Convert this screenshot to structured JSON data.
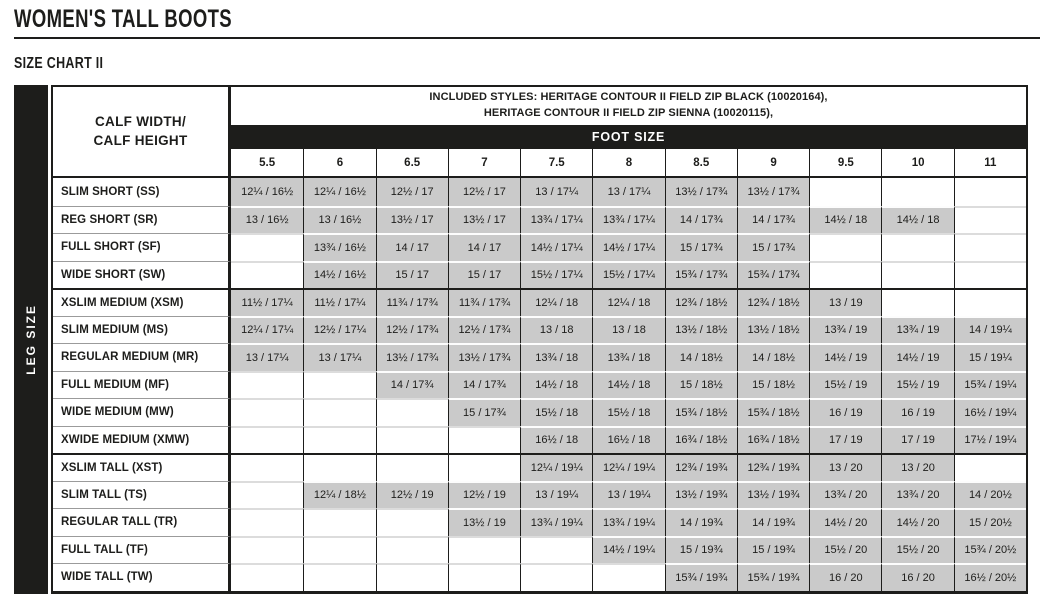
{
  "page": {
    "title": "WOMEN'S TALL BOOTS",
    "subtitle": "SIZE CHART II"
  },
  "colors": {
    "black": "#1d1d1b",
    "grey_cell": "#cacaca",
    "white": "#ffffff"
  },
  "table": {
    "leg_size_label": "LEG SIZE",
    "corner_label_line1": "CALF WIDTH/",
    "corner_label_line2": "CALF HEIGHT",
    "included_styles_line1": "INCLUDED STYLES: HERITAGE CONTOUR II FIELD ZIP BLACK (10020164),",
    "included_styles_line2": "HERITAGE CONTOUR II FIELD ZIP SIENNA (10020115),",
    "foot_size_label": "FOOT SIZE",
    "foot_sizes": [
      "5.5",
      "6",
      "6.5",
      "7",
      "7.5",
      "8",
      "8.5",
      "9",
      "9.5",
      "10",
      "11"
    ],
    "rows": [
      {
        "label": "SLIM SHORT (SS)",
        "group": "short",
        "values": [
          "12¼ / 16½",
          "12¼ / 16½",
          "12½ / 17",
          "12½ / 17",
          "13 / 17¼",
          "13 / 17¼",
          "13½ / 17¾",
          "13½ / 17¾",
          "",
          "",
          ""
        ]
      },
      {
        "label": "REG SHORT (SR)",
        "group": "short",
        "values": [
          "13 / 16½",
          "13 / 16½",
          "13½ / 17",
          "13½ / 17",
          "13¾ / 17¼",
          "13¾ / 17¼",
          "14 / 17¾",
          "14 / 17¾",
          "14½ / 18",
          "14½ / 18",
          ""
        ]
      },
      {
        "label": "FULL SHORT (SF)",
        "group": "short",
        "values": [
          "",
          "13¾ / 16½",
          "14 / 17",
          "14 / 17",
          "14½ / 17¼",
          "14½ / 17¼",
          "15 / 17¾",
          "15 / 17¾",
          "",
          "",
          ""
        ]
      },
      {
        "label": "WIDE SHORT (SW)",
        "group": "short",
        "values": [
          "",
          "14½ / 16½",
          "15 / 17",
          "15 / 17",
          "15½ / 17¼",
          "15½ / 17¼",
          "15¾ / 17¾",
          "15¾ / 17¾",
          "",
          "",
          ""
        ]
      },
      {
        "label": "XSLIM MEDIUM (XSM)",
        "group": "medium",
        "values": [
          "11½ / 17¼",
          "11½ / 17¼",
          "11¾ / 17¾",
          "11¾ / 17¾",
          "12¼ / 18",
          "12¼ / 18",
          "12¾ / 18½",
          "12¾ / 18½",
          "13 / 19",
          "",
          ""
        ]
      },
      {
        "label": "SLIM MEDIUM (MS)",
        "group": "medium",
        "values": [
          "12¼ / 17¼",
          "12½ / 17¼",
          "12½ / 17¾",
          "12½ / 17¾",
          "13 / 18",
          "13 / 18",
          "13½ / 18½",
          "13½ / 18½",
          "13¾ / 19",
          "13¾ / 19",
          "14 / 19¼"
        ]
      },
      {
        "label": "REGULAR MEDIUM (MR)",
        "group": "medium",
        "values": [
          "13 / 17¼",
          "13 / 17¼",
          "13½ / 17¾",
          "13½ / 17¾",
          "13¾ / 18",
          "13¾ / 18",
          "14 / 18½",
          "14 / 18½",
          "14½ / 19",
          "14½ / 19",
          "15 / 19¼"
        ]
      },
      {
        "label": "FULL MEDIUM (MF)",
        "group": "medium",
        "values": [
          "",
          "",
          "14 / 17¾",
          "14 / 17¾",
          "14½ / 18",
          "14½ / 18",
          "15 / 18½",
          "15 / 18½",
          "15½ / 19",
          "15½ / 19",
          "15¾ / 19¼"
        ]
      },
      {
        "label": "WIDE MEDIUM (MW)",
        "group": "medium",
        "values": [
          "",
          "",
          "",
          "15 / 17¾",
          "15½ / 18",
          "15½ / 18",
          "15¾ / 18½",
          "15¾ / 18½",
          "16 / 19",
          "16 / 19",
          "16½ / 19¼"
        ]
      },
      {
        "label": "XWIDE MEDIUM (XMW)",
        "group": "medium",
        "values": [
          "",
          "",
          "",
          "",
          "16½ / 18",
          "16½ / 18",
          "16¾ / 18½",
          "16¾ / 18½",
          "17 / 19",
          "17 / 19",
          "17½ / 19¼"
        ]
      },
      {
        "label": "XSLIM TALL (XST)",
        "group": "tall",
        "values": [
          "",
          "",
          "",
          "",
          "12¼ / 19¼",
          "12¼ / 19¼",
          "12¾ / 19¾",
          "12¾ / 19¾",
          "13 / 20",
          "13 / 20",
          ""
        ]
      },
      {
        "label": "SLIM TALL (TS)",
        "group": "tall",
        "values": [
          "",
          "12¼ / 18½",
          "12½ / 19",
          "12½ / 19",
          "13 / 19¼",
          "13 / 19¼",
          "13½ / 19¾",
          "13½ / 19¾",
          "13¾ / 20",
          "13¾ / 20",
          "14 / 20½"
        ]
      },
      {
        "label": "REGULAR TALL (TR)",
        "group": "tall",
        "values": [
          "",
          "",
          "",
          "13½ / 19",
          "13¾ / 19¼",
          "13¾ / 19¼",
          "14 / 19¾",
          "14 / 19¾",
          "14½ / 20",
          "14½ / 20",
          "15 / 20½"
        ]
      },
      {
        "label": "FULL TALL (TF)",
        "group": "tall",
        "values": [
          "",
          "",
          "",
          "",
          "",
          "14½ / 19¼",
          "15 / 19¾",
          "15 / 19¾",
          "15½ / 20",
          "15½ / 20",
          "15¾ / 20½"
        ]
      },
      {
        "label": "WIDE TALL (TW)",
        "group": "tall",
        "values": [
          "",
          "",
          "",
          "",
          "",
          "",
          "15¾ / 19¾",
          "15¾ / 19¾",
          "16 / 20",
          "16 / 20",
          "16½ / 20½"
        ]
      }
    ]
  }
}
